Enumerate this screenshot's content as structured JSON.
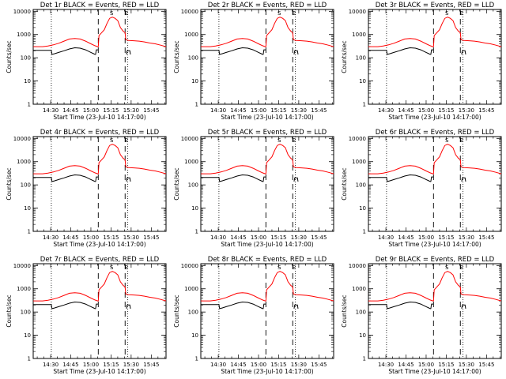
{
  "chart_data": [
    {
      "type": "line",
      "title": "Det 1r BLACK = Events, RED = LLD"
    },
    {
      "type": "line",
      "title": "Det 2r BLACK = Events, RED = LLD"
    },
    {
      "type": "line",
      "title": "Det 3r BLACK = Events, RED = LLD"
    },
    {
      "type": "line",
      "title": "Det 4r BLACK = Events, RED = LLD"
    },
    {
      "type": "line",
      "title": "Det 5r BLACK = Events, RED = LLD"
    },
    {
      "type": "line",
      "title": "Det 6r BLACK = Events, RED = LLD"
    },
    {
      "type": "line",
      "title": "Det 7r BLACK = Events, RED = LLD"
    },
    {
      "type": "line",
      "title": "Det 8r BLACK = Events, RED = LLD"
    },
    {
      "type": "line",
      "title": "Det 9r BLACK = Events, RED = LLD"
    }
  ],
  "shared": {
    "ylabel": "Counts/sec",
    "xlabel": "Start Time (23-Jul-10 14:17:00)",
    "x_ticks": [
      "14:30",
      "14:45",
      "15:00",
      "15:15",
      "15:30",
      "15:45"
    ],
    "x_tick_minutes": [
      30,
      45,
      60,
      75,
      90,
      105
    ],
    "xlim_minutes": [
      17,
      116
    ],
    "y_ticks": [
      "1",
      "10",
      "100",
      "1000",
      "10000"
    ],
    "y_tick_values": [
      1,
      10,
      100,
      1000,
      10000
    ],
    "ylim": [
      1,
      12000
    ],
    "y_scale": "log",
    "dotted_lines_minutes": [
      30.5,
      87.5
    ],
    "dashed_lines_minutes": [
      65.5,
      85.5
    ],
    "markers": [
      {
        "text": "S",
        "minute": 75.5
      },
      {
        "text": "E",
        "minute": 86.5
      }
    ],
    "series": [
      {
        "name": "LLD",
        "color": "#ff0000",
        "x": [
          17,
          20,
          24,
          28,
          32,
          36,
          40,
          44,
          48,
          52,
          56,
          60,
          63,
          65,
          65.5,
          66,
          68,
          70,
          72,
          74,
          76,
          78,
          80,
          82,
          84,
          85.5,
          86,
          88,
          92,
          96,
          100,
          104,
          108,
          112,
          116
        ],
        "y": [
          300,
          300,
          300,
          320,
          360,
          420,
          520,
          640,
          680,
          640,
          520,
          400,
          330,
          300,
          300,
          900,
          1200,
          1600,
          3000,
          5000,
          5600,
          5000,
          4000,
          2000,
          1400,
          1200,
          600,
          560,
          540,
          520,
          480,
          430,
          400,
          350,
          300
        ]
      },
      {
        "name": "Events",
        "color": "#000000",
        "x": [
          17,
          20,
          24,
          28,
          30,
          30.5,
          31,
          33,
          36,
          40,
          44,
          48,
          52,
          56,
          60,
          62,
          63,
          63.5,
          64,
          65,
          65.5
        ],
        "y": [
          210,
          210,
          210,
          210,
          210,
          210,
          140,
          150,
          170,
          200,
          240,
          270,
          260,
          220,
          170,
          150,
          140,
          140,
          220,
          220,
          220
        ]
      }
    ]
  }
}
